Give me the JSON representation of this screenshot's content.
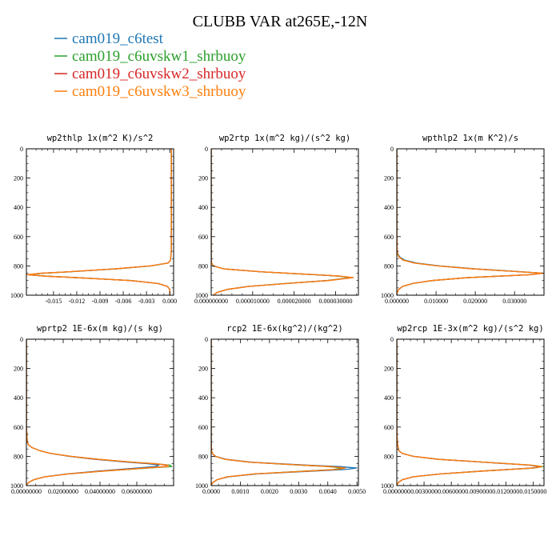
{
  "title": "CLUBB VAR at265E,-12N",
  "legend": [
    {
      "name": "cam019_c6test",
      "color": "#1f77b4"
    },
    {
      "name": "cam019_c6uvskw1_shrbuoy",
      "color": "#2ca02c"
    },
    {
      "name": "cam019_c6uvskw2_shrbuoy",
      "color": "#d62728"
    },
    {
      "name": "cam019_c6uvskw3_shrbuoy",
      "color": "#ff7f0e"
    }
  ],
  "chart_data": [
    {
      "type": "line",
      "title": "wp2thlp  1x(m^2 K)/s^2",
      "xlim": [
        -0.0185,
        0.0005
      ],
      "ylim": [
        0,
        1000
      ],
      "y_inverted": true,
      "xticks": [
        -0.015,
        -0.012,
        -0.009,
        -0.006,
        -0.003,
        0.0
      ],
      "xtick_labels": [
        "-0.015",
        "-0.012",
        "-0.009",
        "-0.006",
        "-0.003",
        "0.000"
      ],
      "yticks": [
        0,
        200,
        400,
        600,
        800,
        1000
      ],
      "ytick_labels": [
        "0",
        "200",
        "400",
        "600",
        "800",
        "1000"
      ],
      "y": [
        0,
        100,
        200,
        300,
        400,
        500,
        600,
        700,
        760,
        780,
        800,
        820,
        840,
        850,
        860,
        870,
        880,
        900,
        920,
        940,
        960,
        980,
        1000
      ],
      "series": [
        {
          "values": [
            0.0002,
            0.0002,
            0.0002,
            0.0002,
            0.0002,
            0.0002,
            0.0002,
            0.0002,
            0.0001,
            -0.0002,
            -0.0025,
            -0.007,
            -0.013,
            -0.0165,
            -0.0183,
            -0.016,
            -0.012,
            -0.005,
            -0.0015,
            -0.0003,
            0.0,
            0.0,
            0.0
          ]
        },
        {
          "values": [
            0.0002,
            0.0002,
            0.0002,
            0.0002,
            0.0002,
            0.0002,
            0.0002,
            0.0002,
            0.0001,
            -0.0002,
            -0.0024,
            -0.0069,
            -0.0129,
            -0.0164,
            -0.0182,
            -0.0159,
            -0.0119,
            -0.005,
            -0.0015,
            -0.0003,
            0.0,
            0.0,
            0.0
          ]
        },
        {
          "values": [
            0.0002,
            0.0002,
            0.0002,
            0.0002,
            0.0002,
            0.0002,
            0.0002,
            0.0002,
            0.0001,
            -0.0002,
            -0.0025,
            -0.007,
            -0.0131,
            -0.0166,
            -0.0184,
            -0.0161,
            -0.0121,
            -0.0051,
            -0.0015,
            -0.0003,
            0.0,
            0.0,
            0.0
          ]
        },
        {
          "values": [
            0.0002,
            0.0002,
            0.0002,
            0.0002,
            0.0002,
            0.0002,
            0.0002,
            0.0002,
            0.0001,
            -0.0002,
            -0.0025,
            -0.0071,
            -0.0131,
            -0.0166,
            -0.0184,
            -0.0161,
            -0.0121,
            -0.0051,
            -0.0015,
            -0.0003,
            0.0,
            0.0,
            0.0
          ]
        }
      ]
    },
    {
      "type": "line",
      "title": "wp2rtp  1x(m^2 kg)/(s^2 kg)",
      "xlim": [
        0,
        3.55e-05
      ],
      "ylim": [
        0,
        1000
      ],
      "y_inverted": true,
      "xticks": [
        0,
        1e-05,
        2e-05,
        3e-05
      ],
      "xtick_labels": [
        "0.000000000",
        "0.000010000",
        "0.000020000",
        "0.000030000"
      ],
      "yticks": [
        0,
        200,
        400,
        600,
        800,
        1000
      ],
      "ytick_labels": [
        "0",
        "200",
        "400",
        "600",
        "800",
        "1000"
      ],
      "y": [
        0,
        200,
        400,
        600,
        700,
        760,
        780,
        800,
        820,
        840,
        860,
        870,
        880,
        900,
        920,
        940,
        960,
        980,
        1000
      ],
      "series": [
        {
          "values": [
            0,
            0,
            0,
            0,
            0,
            0,
            1e-07,
            5e-07,
            3e-06,
            1.2e-05,
            2.5e-05,
            3.1e-05,
            3.4e-05,
            2.8e-05,
            1.8e-05,
            9e-06,
            4e-06,
            1.5e-06,
            5e-07
          ]
        },
        {
          "values": [
            0,
            0,
            0,
            0,
            0,
            0,
            1e-07,
            5e-07,
            3e-06,
            1.18e-05,
            2.48e-05,
            3.08e-05,
            3.38e-05,
            2.79e-05,
            1.79e-05,
            9e-06,
            4e-06,
            1.5e-06,
            5e-07
          ]
        },
        {
          "values": [
            0,
            0,
            0,
            0,
            0,
            0,
            1e-07,
            5e-07,
            3e-06,
            1.21e-05,
            2.52e-05,
            3.12e-05,
            3.42e-05,
            2.82e-05,
            1.81e-05,
            9.1e-06,
            4e-06,
            1.5e-06,
            5e-07
          ]
        },
        {
          "values": [
            0,
            0,
            0,
            0,
            0,
            0,
            1e-07,
            5e-07,
            3e-06,
            1.21e-05,
            2.53e-05,
            3.13e-05,
            3.43e-05,
            2.83e-05,
            1.82e-05,
            9.2e-06,
            4e-06,
            1.5e-06,
            5e-07
          ]
        }
      ]
    },
    {
      "type": "line",
      "title": "wpthlp2  1x(m K^2)/s",
      "xlim": [
        0,
        0.0375
      ],
      "ylim": [
        0,
        1000
      ],
      "y_inverted": true,
      "xticks": [
        0,
        0.01,
        0.02,
        0.03
      ],
      "xtick_labels": [
        "0.000000",
        "0.010000",
        "0.020000",
        "0.030000"
      ],
      "yticks": [
        0,
        200,
        400,
        600,
        800,
        1000
      ],
      "ytick_labels": [
        "0",
        "200",
        "400",
        "600",
        "800",
        "1000"
      ],
      "y": [
        0,
        200,
        400,
        600,
        700,
        720,
        740,
        760,
        780,
        800,
        820,
        840,
        850,
        860,
        870,
        880,
        900,
        920,
        940,
        960,
        980,
        1000
      ],
      "series": [
        {
          "values": [
            0,
            0,
            0,
            0,
            0.0001,
            0.0003,
            0.0008,
            0.002,
            0.005,
            0.011,
            0.02,
            0.032,
            0.0372,
            0.034,
            0.026,
            0.018,
            0.009,
            0.004,
            0.0015,
            0.0005,
            0.0001,
            0
          ]
        },
        {
          "values": [
            0,
            0,
            0,
            0,
            0.0001,
            0.0002,
            0.0006,
            0.0017,
            0.0045,
            0.0105,
            0.0195,
            0.0315,
            0.0371,
            0.0339,
            0.0259,
            0.0179,
            0.009,
            0.004,
            0.0015,
            0.0005,
            0.0001,
            0
          ]
        },
        {
          "values": [
            0,
            0,
            0,
            0,
            0.0001,
            0.0002,
            0.0006,
            0.0016,
            0.0044,
            0.0104,
            0.0194,
            0.0314,
            0.0372,
            0.034,
            0.026,
            0.018,
            0.009,
            0.004,
            0.0015,
            0.0005,
            0.0001,
            0
          ]
        },
        {
          "values": [
            0,
            0,
            0,
            0,
            0.0001,
            0.0002,
            0.0006,
            0.0016,
            0.0044,
            0.0104,
            0.0194,
            0.0314,
            0.0372,
            0.034,
            0.026,
            0.018,
            0.009,
            0.004,
            0.0015,
            0.0005,
            0.0001,
            0
          ]
        }
      ]
    },
    {
      "type": "line",
      "title": "wprtp2  1E-6x(m kg)/(s kg)",
      "xlim": [
        0,
        0.08
      ],
      "ylim": [
        0,
        1000
      ],
      "y_inverted": true,
      "xticks": [
        0,
        0.02,
        0.04,
        0.06
      ],
      "xtick_labels": [
        "0.00000000",
        "0.02000000",
        "0.04000000",
        "0.06000000"
      ],
      "yticks": [
        0,
        200,
        400,
        600,
        800,
        1000
      ],
      "ytick_labels": [
        "0",
        "200",
        "400",
        "600",
        "800",
        "1000"
      ],
      "y": [
        0,
        200,
        400,
        600,
        700,
        720,
        740,
        760,
        780,
        800,
        820,
        840,
        850,
        860,
        870,
        880,
        900,
        920,
        940,
        960,
        980,
        1000
      ],
      "series": [
        {
          "values": [
            0,
            0,
            0,
            0,
            0.0005,
            0.001,
            0.003,
            0.007,
            0.013,
            0.023,
            0.037,
            0.055,
            0.066,
            0.072,
            0.07,
            0.06,
            0.04,
            0.022,
            0.01,
            0.004,
            0.001,
            0
          ]
        },
        {
          "values": [
            0,
            0,
            0,
            0,
            0.0005,
            0.001,
            0.003,
            0.007,
            0.013,
            0.024,
            0.039,
            0.058,
            0.07,
            0.078,
            0.079,
            0.066,
            0.043,
            0.023,
            0.01,
            0.004,
            0.001,
            0
          ]
        },
        {
          "values": [
            0,
            0,
            0,
            0,
            0.0005,
            0.001,
            0.003,
            0.007,
            0.013,
            0.024,
            0.038,
            0.057,
            0.069,
            0.076,
            0.076,
            0.064,
            0.042,
            0.023,
            0.01,
            0.004,
            0.001,
            0
          ]
        },
        {
          "values": [
            0,
            0,
            0,
            0,
            0.0005,
            0.001,
            0.003,
            0.007,
            0.013,
            0.024,
            0.039,
            0.058,
            0.07,
            0.077,
            0.077,
            0.065,
            0.043,
            0.023,
            0.01,
            0.004,
            0.001,
            0
          ]
        }
      ]
    },
    {
      "type": "line",
      "title": "rcp2  1E-6x(kg^2)/(kg^2)",
      "xlim": [
        0,
        0.00505
      ],
      "ylim": [
        0,
        1000
      ],
      "y_inverted": true,
      "xticks": [
        0,
        0.001,
        0.002,
        0.003,
        0.004,
        0.005
      ],
      "xtick_labels": [
        "0.0000",
        "0.0010",
        "0.0020",
        "0.0030",
        "0.0040",
        "0.0050"
      ],
      "yticks": [
        0,
        200,
        400,
        600,
        800,
        1000
      ],
      "ytick_labels": [
        "0",
        "200",
        "400",
        "600",
        "800",
        "1000"
      ],
      "y": [
        0,
        200,
        400,
        600,
        700,
        760,
        780,
        800,
        820,
        840,
        860,
        870,
        880,
        890,
        900,
        920,
        940,
        960,
        980,
        1000
      ],
      "series": [
        {
          "values": [
            0,
            0,
            0,
            0,
            0,
            1e-05,
            4e-05,
            0.00015,
            0.0005,
            0.0014,
            0.0033,
            0.0044,
            0.005,
            0.0046,
            0.0036,
            0.0016,
            0.0006,
            0.0002,
            5e-05,
            0
          ]
        },
        {
          "values": [
            0,
            0,
            0,
            0,
            0,
            1e-05,
            4e-05,
            0.00014,
            0.00046,
            0.0013,
            0.003,
            0.004,
            0.0045,
            0.0042,
            0.0033,
            0.0015,
            0.00055,
            0.0002,
            5e-05,
            0
          ]
        },
        {
          "values": [
            0,
            0,
            0,
            0,
            0,
            1e-05,
            4e-05,
            0.00014,
            0.00047,
            0.00132,
            0.0031,
            0.0041,
            0.0046,
            0.0043,
            0.0034,
            0.0015,
            0.00056,
            0.0002,
            5e-05,
            0
          ]
        },
        {
          "values": [
            0,
            0,
            0,
            0,
            0,
            1e-05,
            4e-05,
            0.00014,
            0.00047,
            0.00132,
            0.0031,
            0.0041,
            0.0046,
            0.0043,
            0.0034,
            0.0015,
            0.00056,
            0.0002,
            5e-05,
            0
          ]
        }
      ]
    },
    {
      "type": "line",
      "title": "wp2rcp  1E-3x(m^2 kg)/(s^2 kg)",
      "xlim": [
        0,
        0.0162
      ],
      "ylim": [
        0,
        1000
      ],
      "y_inverted": true,
      "xticks": [
        0,
        0.003,
        0.006,
        0.009,
        0.012,
        0.015
      ],
      "xtick_labels": [
        "0.0000000",
        "0.0030000",
        "0.0060000",
        "0.0090000",
        "0.0120000",
        "0.0150000"
      ],
      "yticks": [
        0,
        200,
        400,
        600,
        800,
        1000
      ],
      "ytick_labels": [
        "0",
        "200",
        "400",
        "600",
        "800",
        "1000"
      ],
      "y": [
        0,
        200,
        400,
        600,
        700,
        760,
        780,
        800,
        820,
        840,
        860,
        870,
        880,
        900,
        920,
        940,
        960,
        980,
        1000
      ],
      "series": [
        {
          "values": [
            0,
            0,
            0,
            0,
            5e-05,
            0.0002,
            0.0006,
            0.0018,
            0.0045,
            0.0095,
            0.0145,
            0.0158,
            0.0148,
            0.0095,
            0.0048,
            0.0018,
            0.0006,
            0.00015,
            0
          ]
        },
        {
          "values": [
            0,
            0,
            0,
            0,
            5e-05,
            0.0002,
            0.0006,
            0.0018,
            0.0046,
            0.0097,
            0.0148,
            0.0161,
            0.0151,
            0.0097,
            0.0049,
            0.0018,
            0.0006,
            0.00015,
            0
          ]
        },
        {
          "values": [
            0,
            0,
            0,
            0,
            5e-05,
            0.0002,
            0.0006,
            0.0018,
            0.0045,
            0.0096,
            0.0146,
            0.0159,
            0.0149,
            0.0096,
            0.0048,
            0.0018,
            0.0006,
            0.00015,
            0
          ]
        },
        {
          "values": [
            0,
            0,
            0,
            0,
            5e-05,
            0.0002,
            0.0006,
            0.0018,
            0.0046,
            0.0097,
            0.0147,
            0.016,
            0.015,
            0.0097,
            0.0049,
            0.0018,
            0.0006,
            0.00015,
            0
          ]
        }
      ]
    }
  ]
}
